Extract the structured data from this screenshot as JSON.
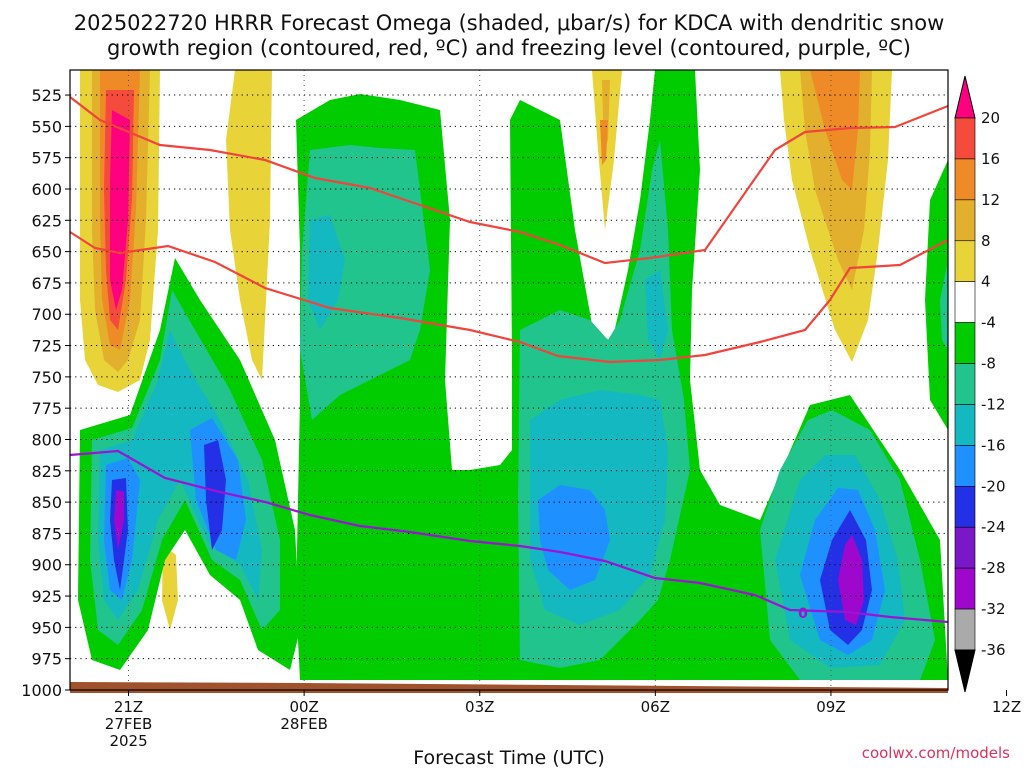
{
  "title": {
    "line1": "2025022720 HRRR Forecast Omega (shaded, μbar/s) for KDCA with dendritic snow",
    "line2": "growth region (contoured, red, ºC) and freezing level (contoured, purple, ºC)"
  },
  "credit": "coolwx.com/models",
  "chart_data": {
    "type": "heatmap",
    "title": "2025022720 HRRR Forecast Omega (shaded, μbar/s) for KDCA with dendritic snow growth region (contoured, red, ºC) and freezing level (contoured, purple, ºC)",
    "xlabel": "Forecast Time (UTC)",
    "ylabel": "",
    "x_hours_utc_from_2025-02-27T20Z": [
      0,
      15
    ],
    "xlim_hours": [
      0,
      15
    ],
    "ylim_hPa": [
      1000,
      505
    ],
    "y_ticks_hPa": [
      525,
      550,
      575,
      600,
      625,
      650,
      675,
      700,
      725,
      750,
      775,
      800,
      825,
      850,
      875,
      900,
      925,
      950,
      975,
      1000
    ],
    "x_ticks": [
      {
        "hour": 1,
        "label1": "21Z",
        "label2": "27FEB",
        "label3": "2025"
      },
      {
        "hour": 4,
        "label1": "00Z",
        "label2": "28FEB",
        "label3": ""
      },
      {
        "hour": 7,
        "label1": "03Z",
        "label2": "",
        "label3": ""
      },
      {
        "hour": 10,
        "label1": "06Z",
        "label2": "",
        "label3": ""
      },
      {
        "hour": 13,
        "label1": "09Z",
        "label2": "",
        "label3": ""
      },
      {
        "hour": 16,
        "label1": "12Z",
        "label2": "",
        "label3": ""
      }
    ],
    "grid": true,
    "colorbar": {
      "levels": [
        20,
        16,
        12,
        8,
        4,
        -4,
        -8,
        -12,
        -16,
        -20,
        -24,
        -28,
        -32,
        -36
      ],
      "colors": [
        "#ff007f",
        "#f44b3c",
        "#ef8b26",
        "#e2b02c",
        "#e8d339",
        "#ffffff",
        "#00cc00",
        "#21c48d",
        "#14b8c0",
        "#1e90ff",
        "#2430e6",
        "#7a18c8",
        "#9e08cc",
        "#aaaaaa",
        "#000000"
      ]
    },
    "contour_labels": [
      {
        "text": "0",
        "color": "#9a14d4"
      }
    ]
  }
}
